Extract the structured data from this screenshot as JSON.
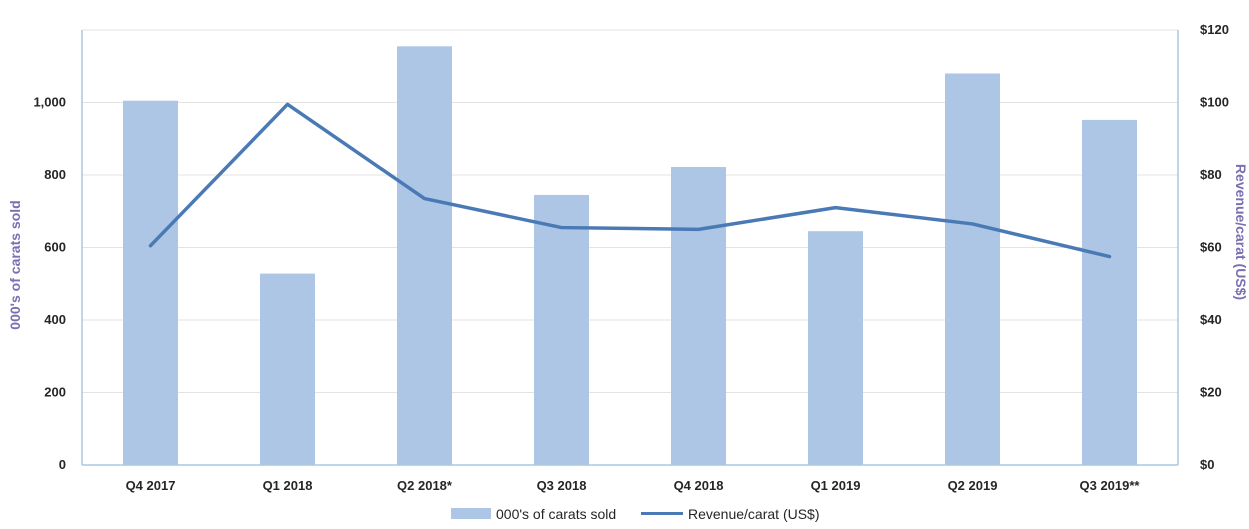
{
  "chart_data": {
    "type": "bar",
    "categories": [
      "Q4 2017",
      "Q1 2018",
      "Q2 2018*",
      "Q3 2018",
      "Q4 2018",
      "Q1 2019",
      "Q2 2019",
      "Q3 2019**"
    ],
    "series": [
      {
        "name": "000's of carats sold",
        "type": "bar",
        "axis": "left",
        "color": "#adc6e5",
        "values": [
          1005,
          528,
          1155,
          745,
          822,
          645,
          1080,
          952
        ]
      },
      {
        "name": "Revenue/carat (US$)",
        "type": "line",
        "axis": "right",
        "color": "#4a7ab5",
        "values": [
          60.5,
          99.5,
          73.5,
          65.5,
          65,
          71,
          66.5,
          57.5
        ]
      }
    ],
    "ylabel": "000's of carats sold",
    "y2label": "Revenue/carat (US$)",
    "ylim": [
      0,
      1200
    ],
    "y2lim": [
      0,
      120
    ],
    "yticks": [
      "0",
      "200",
      "400",
      "600",
      "800",
      "1,000"
    ],
    "yticks_values": [
      0,
      200,
      400,
      600,
      800,
      1000
    ],
    "y2ticks": [
      "$0",
      "$20",
      "$40",
      "$60",
      "$80",
      "$100",
      "$120"
    ],
    "y2ticks_values": [
      0,
      20,
      40,
      60,
      80,
      100,
      120
    ],
    "grid": true,
    "legend_position": "bottom"
  }
}
